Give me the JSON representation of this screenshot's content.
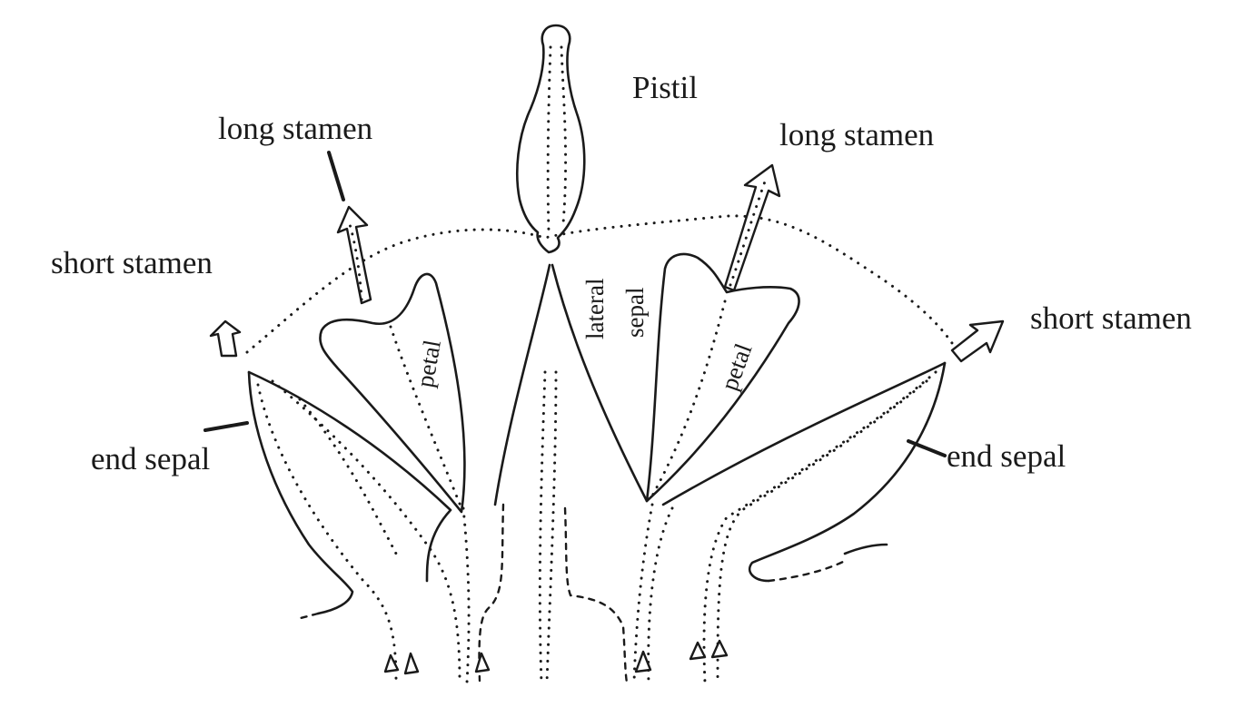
{
  "labels": {
    "pistil": "Pistil",
    "long_stamen_left": "long stamen",
    "long_stamen_right": "long stamen",
    "short_stamen_left": "short stamen",
    "short_stamen_right": "short stamen",
    "lateral_sepal_line1": "lateral",
    "lateral_sepal_line2": "sepal",
    "petal_left": "petal",
    "petal_right": "petal",
    "end_sepal_left": "end sepal",
    "end_sepal_right": "end sepal"
  }
}
